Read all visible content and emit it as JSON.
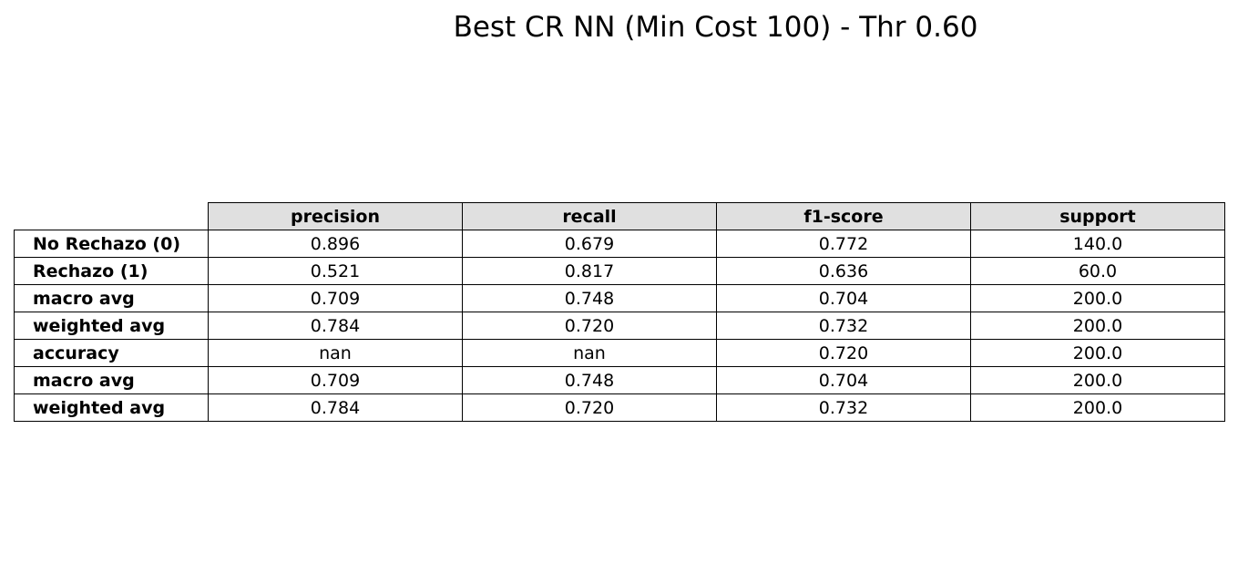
{
  "chart_data": {
    "type": "table",
    "title": "Best CR NN (Min Cost 100) - Thr 0.60",
    "columns": [
      "precision",
      "recall",
      "f1-score",
      "support"
    ],
    "rows": [
      {
        "label": "No Rechazo (0)",
        "values": [
          "0.896",
          "0.679",
          "0.772",
          "140.0"
        ]
      },
      {
        "label": "Rechazo (1)",
        "values": [
          "0.521",
          "0.817",
          "0.636",
          "60.0"
        ]
      },
      {
        "label": "macro avg",
        "values": [
          "0.709",
          "0.748",
          "0.704",
          "200.0"
        ]
      },
      {
        "label": "weighted avg",
        "values": [
          "0.784",
          "0.720",
          "0.732",
          "200.0"
        ]
      },
      {
        "label": "accuracy",
        "values": [
          "nan",
          "nan",
          "0.720",
          "200.0"
        ]
      },
      {
        "label": "macro avg",
        "values": [
          "0.709",
          "0.748",
          "0.704",
          "200.0"
        ]
      },
      {
        "label": "weighted avg",
        "values": [
          "0.784",
          "0.720",
          "0.732",
          "200.0"
        ]
      }
    ],
    "header_background": "#e0e0e0",
    "border_color": "#000000"
  }
}
